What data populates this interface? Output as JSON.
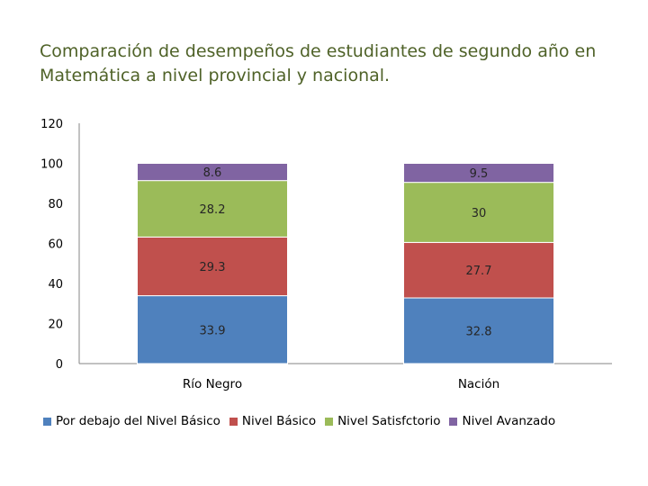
{
  "chart_data": {
    "type": "bar",
    "stacked": true,
    "title": "Comparación de desempeños de estudiantes de segundo año en Matemática a nivel provincial y nacional.",
    "categories": [
      "Río Negro",
      "Nación"
    ],
    "series": [
      {
        "name": "Por debajo del Nivel Básico",
        "color": "#4f81bd",
        "values": [
          33.9,
          32.8
        ]
      },
      {
        "name": "Nivel Básico",
        "color": "#c0504d",
        "values": [
          29.3,
          27.7
        ]
      },
      {
        "name": "Nivel Satisfctorio",
        "color": "#9bbb59",
        "values": [
          28.2,
          30
        ]
      },
      {
        "name": "Nivel Avanzado",
        "color": "#8064a2",
        "values": [
          8.6,
          9.5
        ]
      }
    ],
    "yticks": [
      "0",
      "20",
      "40",
      "60",
      "80",
      "100",
      "120"
    ],
    "ylim": [
      0,
      120
    ],
    "legend_position": "bottom",
    "grid": false
  }
}
